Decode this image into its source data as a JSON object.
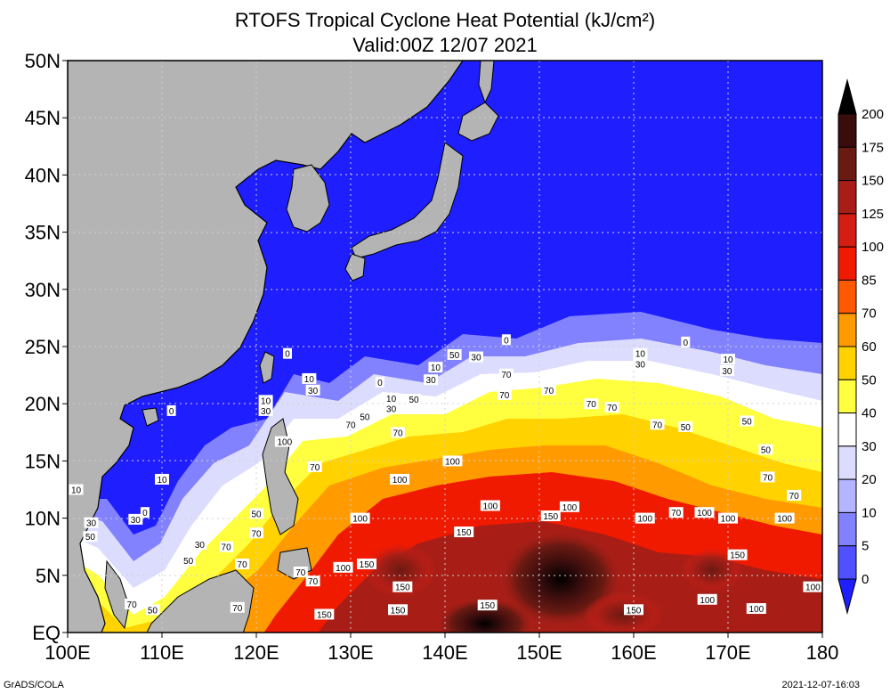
{
  "title_line1": "RTOFS Tropical Cyclone Heat Potential (kJ/cm²)",
  "title_line2": "Valid:00Z 12/07 2021",
  "footer_left": "GrADS/COLA",
  "footer_right": "2021-12-07-16:03",
  "lat_labels": [
    "50N",
    "45N",
    "40N",
    "35N",
    "30N",
    "25N",
    "20N",
    "15N",
    "10N",
    "5N",
    "EQ"
  ],
  "lon_labels": [
    "100E",
    "110E",
    "120E",
    "130E",
    "140E",
    "150E",
    "160E",
    "170E",
    "180"
  ],
  "colorbar": {
    "labels": [
      "200",
      "175",
      "150",
      "125",
      "100",
      "85",
      "70",
      "60",
      "50",
      "40",
      "30",
      "20",
      "10",
      "5",
      "0"
    ],
    "colors": [
      "#000000",
      "#3a0d0d",
      "#6b1a12",
      "#a81e17",
      "#d41e14",
      "#f01a00",
      "#ff5a00",
      "#ff9a00",
      "#ffd200",
      "#ffff40",
      "#ffffff",
      "#dcdcff",
      "#b4b4ff",
      "#8282ff",
      "#5050ff",
      "#1e1eff"
    ]
  },
  "chart_data": {
    "type": "heatmap",
    "title": "RTOFS Tropical Cyclone Heat Potential (kJ/cm²)",
    "subtitle": "Valid:00Z 12/07 2021",
    "xlim": [
      100,
      180
    ],
    "ylim": [
      0,
      50
    ],
    "grid": true,
    "colorbar_ticks": [
      0,
      5,
      10,
      20,
      30,
      40,
      50,
      60,
      70,
      85,
      100,
      125,
      150,
      175,
      200
    ],
    "contour_labels": [
      {
        "lon": 146.5,
        "lat": 25.6,
        "value": "0"
      },
      {
        "lon": 165.5,
        "lat": 25.4,
        "value": "0"
      },
      {
        "lon": 123.3,
        "lat": 24.4,
        "value": "0"
      },
      {
        "lon": 133.1,
        "lat": 21.9,
        "value": "0"
      },
      {
        "lon": 111.0,
        "lat": 19.4,
        "value": "0"
      },
      {
        "lon": 108.2,
        "lat": 10.5,
        "value": "0"
      },
      {
        "lon": 160.7,
        "lat": 24.4,
        "value": "10"
      },
      {
        "lon": 139.0,
        "lat": 23.2,
        "value": "10"
      },
      {
        "lon": 125.6,
        "lat": 22.2,
        "value": "10"
      },
      {
        "lon": 121.0,
        "lat": 20.3,
        "value": "10"
      },
      {
        "lon": 134.3,
        "lat": 20.5,
        "value": "10"
      },
      {
        "lon": 170.0,
        "lat": 23.9,
        "value": "10"
      },
      {
        "lon": 110.0,
        "lat": 13.4,
        "value": "10"
      },
      {
        "lon": 100.9,
        "lat": 12.5,
        "value": "10"
      },
      {
        "lon": 143.3,
        "lat": 24.1,
        "value": "30"
      },
      {
        "lon": 138.5,
        "lat": 22.1,
        "value": "30"
      },
      {
        "lon": 160.7,
        "lat": 23.5,
        "value": "30"
      },
      {
        "lon": 126.0,
        "lat": 21.2,
        "value": "30"
      },
      {
        "lon": 121.0,
        "lat": 19.4,
        "value": "30"
      },
      {
        "lon": 134.3,
        "lat": 19.6,
        "value": "30"
      },
      {
        "lon": 169.9,
        "lat": 22.9,
        "value": "30"
      },
      {
        "lon": 107.2,
        "lat": 9.9,
        "value": "30"
      },
      {
        "lon": 102.5,
        "lat": 9.6,
        "value": "30"
      },
      {
        "lon": 114.0,
        "lat": 7.7,
        "value": "30"
      },
      {
        "lon": 141.0,
        "lat": 24.3,
        "value": "50"
      },
      {
        "lon": 136.7,
        "lat": 20.4,
        "value": "50"
      },
      {
        "lon": 131.5,
        "lat": 18.9,
        "value": "50"
      },
      {
        "lon": 165.5,
        "lat": 18.0,
        "value": "50"
      },
      {
        "lon": 172.0,
        "lat": 18.5,
        "value": "50"
      },
      {
        "lon": 174.0,
        "lat": 16.0,
        "value": "50"
      },
      {
        "lon": 102.4,
        "lat": 8.4,
        "value": "50"
      },
      {
        "lon": 112.8,
        "lat": 6.3,
        "value": "50"
      },
      {
        "lon": 120.0,
        "lat": 10.4,
        "value": "50"
      },
      {
        "lon": 109.0,
        "lat": 2.0,
        "value": "50"
      },
      {
        "lon": 146.5,
        "lat": 22.6,
        "value": "70"
      },
      {
        "lon": 146.3,
        "lat": 20.8,
        "value": "70"
      },
      {
        "lon": 151.0,
        "lat": 21.2,
        "value": "70"
      },
      {
        "lon": 155.5,
        "lat": 20.0,
        "value": "70"
      },
      {
        "lon": 157.7,
        "lat": 19.7,
        "value": "70"
      },
      {
        "lon": 135.0,
        "lat": 17.5,
        "value": "70"
      },
      {
        "lon": 130.0,
        "lat": 18.2,
        "value": "70"
      },
      {
        "lon": 126.2,
        "lat": 14.5,
        "value": "70"
      },
      {
        "lon": 162.5,
        "lat": 18.2,
        "value": "70"
      },
      {
        "lon": 174.2,
        "lat": 13.6,
        "value": "70"
      },
      {
        "lon": 177.0,
        "lat": 12.0,
        "value": "70"
      },
      {
        "lon": 164.5,
        "lat": 10.5,
        "value": "70"
      },
      {
        "lon": 120.0,
        "lat": 8.7,
        "value": "70"
      },
      {
        "lon": 116.8,
        "lat": 7.5,
        "value": "70"
      },
      {
        "lon": 118.5,
        "lat": 6.0,
        "value": "70"
      },
      {
        "lon": 124.7,
        "lat": 5.3,
        "value": "70"
      },
      {
        "lon": 126.0,
        "lat": 4.5,
        "value": "70"
      },
      {
        "lon": 118.0,
        "lat": 2.2,
        "value": "70"
      },
      {
        "lon": 106.8,
        "lat": 2.5,
        "value": "70"
      },
      {
        "lon": 123.0,
        "lat": 16.7,
        "value": "100"
      },
      {
        "lon": 135.2,
        "lat": 13.4,
        "value": "100"
      },
      {
        "lon": 140.8,
        "lat": 15.0,
        "value": "100"
      },
      {
        "lon": 144.8,
        "lat": 11.1,
        "value": "100"
      },
      {
        "lon": 131.0,
        "lat": 10.0,
        "value": "100"
      },
      {
        "lon": 153.2,
        "lat": 11.0,
        "value": "100"
      },
      {
        "lon": 161.2,
        "lat": 10.0,
        "value": "100"
      },
      {
        "lon": 167.5,
        "lat": 10.5,
        "value": "100"
      },
      {
        "lon": 170.0,
        "lat": 10.0,
        "value": "100"
      },
      {
        "lon": 176.0,
        "lat": 10.0,
        "value": "100"
      },
      {
        "lon": 129.2,
        "lat": 5.7,
        "value": "100"
      },
      {
        "lon": 179.0,
        "lat": 4.0,
        "value": "100"
      },
      {
        "lon": 167.8,
        "lat": 2.9,
        "value": "100"
      },
      {
        "lon": 173.0,
        "lat": 2.1,
        "value": "100"
      },
      {
        "lon": 151.2,
        "lat": 10.2,
        "value": "150"
      },
      {
        "lon": 142.0,
        "lat": 8.8,
        "value": "150"
      },
      {
        "lon": 131.7,
        "lat": 6.0,
        "value": "150"
      },
      {
        "lon": 135.5,
        "lat": 4.0,
        "value": "150"
      },
      {
        "lon": 135.0,
        "lat": 2.0,
        "value": "150"
      },
      {
        "lon": 144.5,
        "lat": 2.4,
        "value": "150"
      },
      {
        "lon": 127.2,
        "lat": 1.6,
        "value": "150"
      },
      {
        "lon": 160.0,
        "lat": 2.0,
        "value": "150"
      },
      {
        "lon": 171.0,
        "lat": 6.8,
        "value": "150"
      }
    ]
  }
}
